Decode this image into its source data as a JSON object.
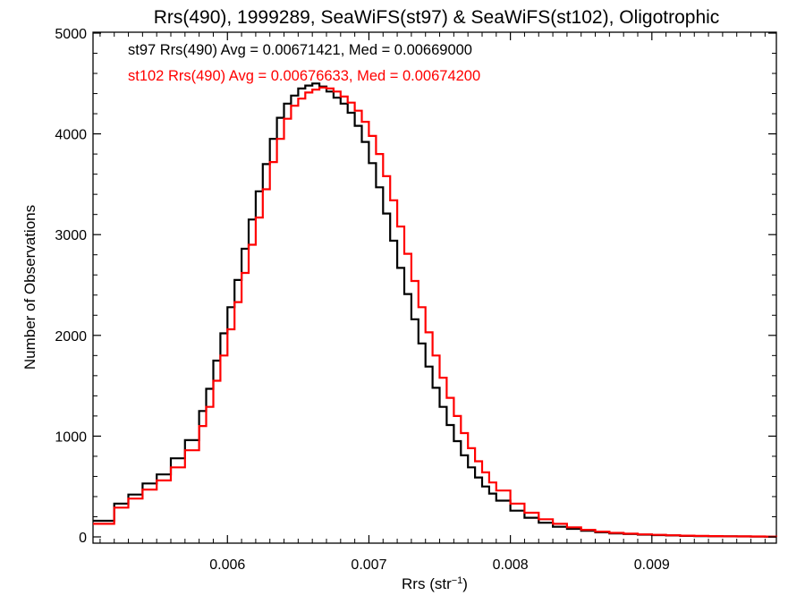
{
  "chart_data": {
    "type": "line",
    "title": "Rrs(490), 1999289, SeaWiFS(st97) & SeaWiFS(st102), Oligotrophic",
    "xlabel_main": "Rrs (str",
    "xlabel_exp": "−1",
    "xlabel_close": ")",
    "ylabel": "Number of Observations",
    "xlim": [
      0.00505,
      0.00988
    ],
    "ylim": [
      0,
      5000
    ],
    "x_ticks": [
      {
        "value": 0.006,
        "label": "0.006"
      },
      {
        "value": 0.007,
        "label": "0.007"
      },
      {
        "value": 0.008,
        "label": "0.008"
      },
      {
        "value": 0.009,
        "label": "0.009"
      }
    ],
    "y_ticks": [
      {
        "value": 0,
        "label": "0"
      },
      {
        "value": 1000,
        "label": "1000"
      },
      {
        "value": 2000,
        "label": "2000"
      },
      {
        "value": 3000,
        "label": "3000"
      },
      {
        "value": 4000,
        "label": "4000"
      },
      {
        "value": 5000,
        "label": "5000"
      }
    ],
    "annotations": [
      {
        "text": "st97 Rrs(490) Avg = 0.00671421, Med = 0.00669000",
        "color": "#000000"
      },
      {
        "text": "st102 Rrs(490) Avg = 0.00676633, Med = 0.00674200",
        "color": "#ff0000"
      }
    ],
    "series": [
      {
        "name": "st97",
        "color": "#000000",
        "step": true,
        "x": [
          0.00505,
          0.0052,
          0.0053,
          0.0054,
          0.0055,
          0.0056,
          0.0057,
          0.0058,
          0.00585,
          0.0059,
          0.00595,
          0.006,
          0.00605,
          0.0061,
          0.00615,
          0.0062,
          0.00625,
          0.0063,
          0.00635,
          0.0064,
          0.00645,
          0.0065,
          0.00655,
          0.0066,
          0.00665,
          0.0067,
          0.00675,
          0.0068,
          0.00685,
          0.0069,
          0.00695,
          0.007,
          0.00705,
          0.0071,
          0.00715,
          0.0072,
          0.00725,
          0.0073,
          0.00735,
          0.0074,
          0.00745,
          0.0075,
          0.00755,
          0.0076,
          0.00765,
          0.0077,
          0.00775,
          0.0078,
          0.00785,
          0.0079,
          0.008,
          0.0081,
          0.0082,
          0.0083,
          0.0084,
          0.0085,
          0.0086,
          0.0087,
          0.0088,
          0.0089,
          0.009,
          0.0091,
          0.0092,
          0.0093,
          0.0094,
          0.0095,
          0.0096,
          0.0097,
          0.0098,
          0.00988
        ],
        "y": [
          160,
          330,
          420,
          530,
          620,
          780,
          960,
          1250,
          1470,
          1750,
          2020,
          2280,
          2550,
          2860,
          3150,
          3430,
          3700,
          3950,
          4160,
          4300,
          4380,
          4450,
          4480,
          4500,
          4470,
          4420,
          4360,
          4300,
          4210,
          4080,
          3920,
          3710,
          3470,
          3210,
          2940,
          2670,
          2410,
          2160,
          1920,
          1690,
          1480,
          1290,
          1110,
          950,
          810,
          690,
          590,
          500,
          430,
          360,
          260,
          190,
          140,
          100,
          80,
          60,
          45,
          35,
          28,
          22,
          18,
          14,
          10,
          8,
          6,
          5,
          4,
          3,
          2,
          2
        ]
      },
      {
        "name": "st102",
        "color": "#ff0000",
        "step": true,
        "x": [
          0.00505,
          0.0052,
          0.0053,
          0.0054,
          0.0055,
          0.0056,
          0.0057,
          0.0058,
          0.00585,
          0.0059,
          0.00595,
          0.006,
          0.00605,
          0.0061,
          0.00615,
          0.0062,
          0.00625,
          0.0063,
          0.00635,
          0.0064,
          0.00645,
          0.0065,
          0.00655,
          0.0066,
          0.00665,
          0.0067,
          0.00675,
          0.0068,
          0.00685,
          0.0069,
          0.00695,
          0.007,
          0.00705,
          0.0071,
          0.00715,
          0.0072,
          0.00725,
          0.0073,
          0.00735,
          0.0074,
          0.00745,
          0.0075,
          0.00755,
          0.0076,
          0.00765,
          0.0077,
          0.00775,
          0.0078,
          0.00785,
          0.0079,
          0.008,
          0.0081,
          0.0082,
          0.0083,
          0.0084,
          0.0085,
          0.0086,
          0.0087,
          0.0088,
          0.0089,
          0.009,
          0.0091,
          0.0092,
          0.0093,
          0.0094,
          0.0095,
          0.0096,
          0.0097,
          0.0098,
          0.00988
        ],
        "y": [
          130,
          290,
          380,
          470,
          560,
          690,
          860,
          1100,
          1290,
          1550,
          1800,
          2060,
          2330,
          2620,
          2900,
          3170,
          3450,
          3720,
          3950,
          4150,
          4280,
          4350,
          4410,
          4440,
          4460,
          4450,
          4420,
          4370,
          4310,
          4230,
          4120,
          3980,
          3800,
          3580,
          3340,
          3080,
          2810,
          2540,
          2280,
          2030,
          1800,
          1580,
          1380,
          1200,
          1030,
          880,
          750,
          640,
          540,
          460,
          330,
          240,
          175,
          130,
          95,
          70,
          52,
          40,
          32,
          25,
          20,
          16,
          12,
          10,
          8,
          6,
          5,
          4,
          3,
          2
        ]
      }
    ]
  }
}
